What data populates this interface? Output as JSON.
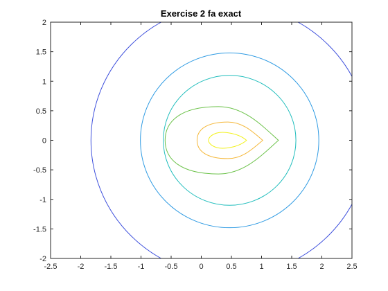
{
  "chart_data": {
    "type": "contour",
    "title": "Exercise 2 fa exact",
    "xlabel": "",
    "ylabel": "",
    "xlim": [
      -2.5,
      2.5
    ],
    "ylim": [
      -2,
      2
    ],
    "xticks": [
      "-2.5",
      "-2",
      "-1.5",
      "-1",
      "-0.5",
      "0",
      "0.5",
      "1",
      "1.5",
      "2",
      "2.5"
    ],
    "yticks": [
      "-2",
      "-1.5",
      "-1",
      "-0.5",
      "0",
      "0.5",
      "1",
      "1.5",
      "2"
    ],
    "grid": false,
    "box": true,
    "series": [
      {
        "color": "#3d4fdc",
        "shape": "circle",
        "center": [
          0.47,
          0
        ],
        "radius": 2.3
      },
      {
        "color": "#2f9be3",
        "shape": "circle",
        "center": [
          0.47,
          0
        ],
        "radius": 1.48
      },
      {
        "color": "#1fbdbc",
        "shape": "circle",
        "center": [
          0.47,
          0
        ],
        "radius": 1.1
      },
      {
        "color": "#6cc24a",
        "shape": "teardrop",
        "center": [
          0.47,
          0
        ],
        "left_x": -0.6,
        "right_x": 1.28,
        "half_height": 0.57
      },
      {
        "color": "#f5b83a",
        "shape": "teardrop",
        "center": [
          0.47,
          0
        ],
        "left_x": -0.07,
        "right_x": 1.02,
        "half_height": 0.31
      },
      {
        "color": "#f2f21a",
        "shape": "lens",
        "center": [
          0.47,
          0
        ],
        "left_x": 0.12,
        "right_x": 0.75,
        "half_height": 0.13
      }
    ]
  }
}
